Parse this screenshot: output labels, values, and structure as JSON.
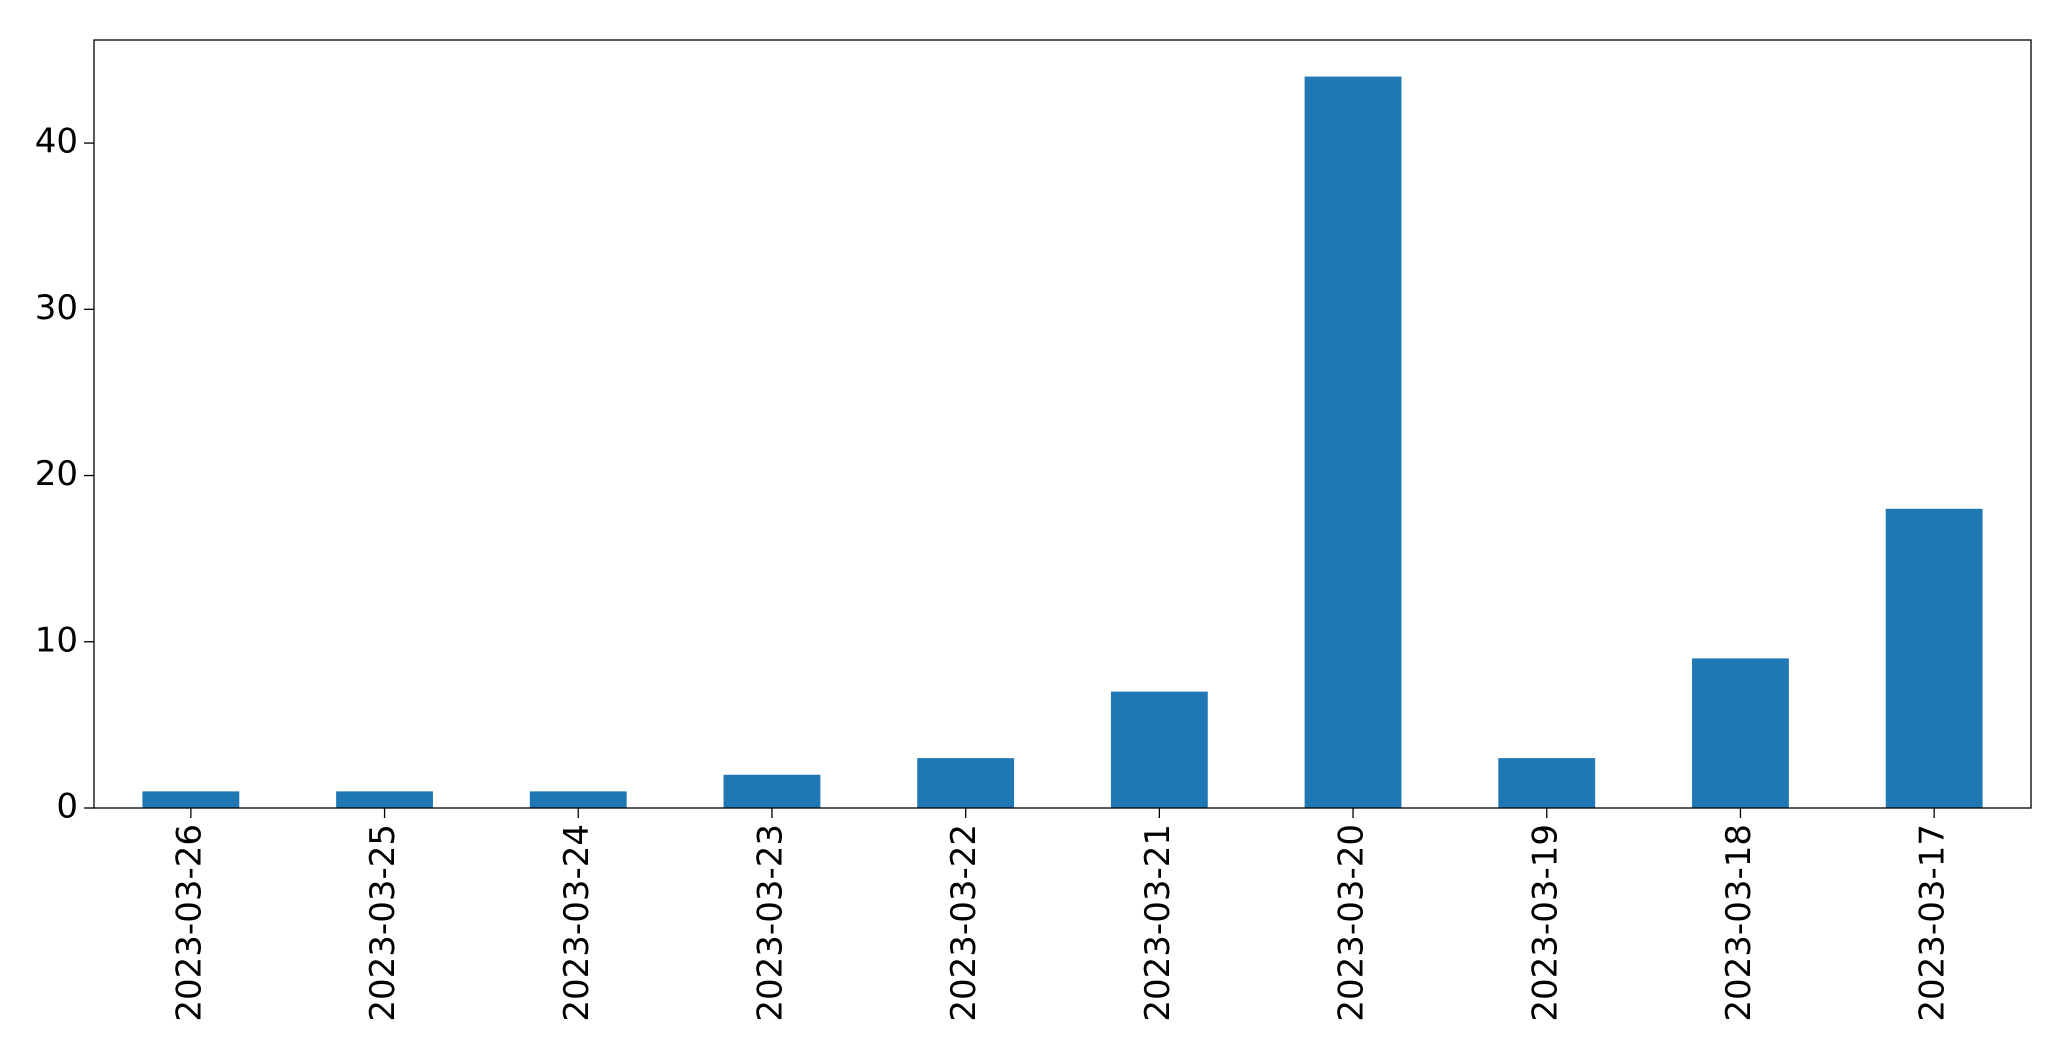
{
  "chart_data": {
    "type": "bar",
    "categories": [
      "2023-03-26",
      "2023-03-25",
      "2023-03-24",
      "2023-03-23",
      "2023-03-22",
      "2023-03-21",
      "2023-03-20",
      "2023-03-19",
      "2023-03-18",
      "2023-03-17"
    ],
    "values": [
      1,
      1,
      1,
      2,
      3,
      7,
      44,
      3,
      9,
      18
    ],
    "color": "#1f77b4",
    "ylim": [
      0,
      46.2
    ],
    "yticks": [
      0,
      10,
      20,
      30,
      40
    ],
    "grid": false
  }
}
